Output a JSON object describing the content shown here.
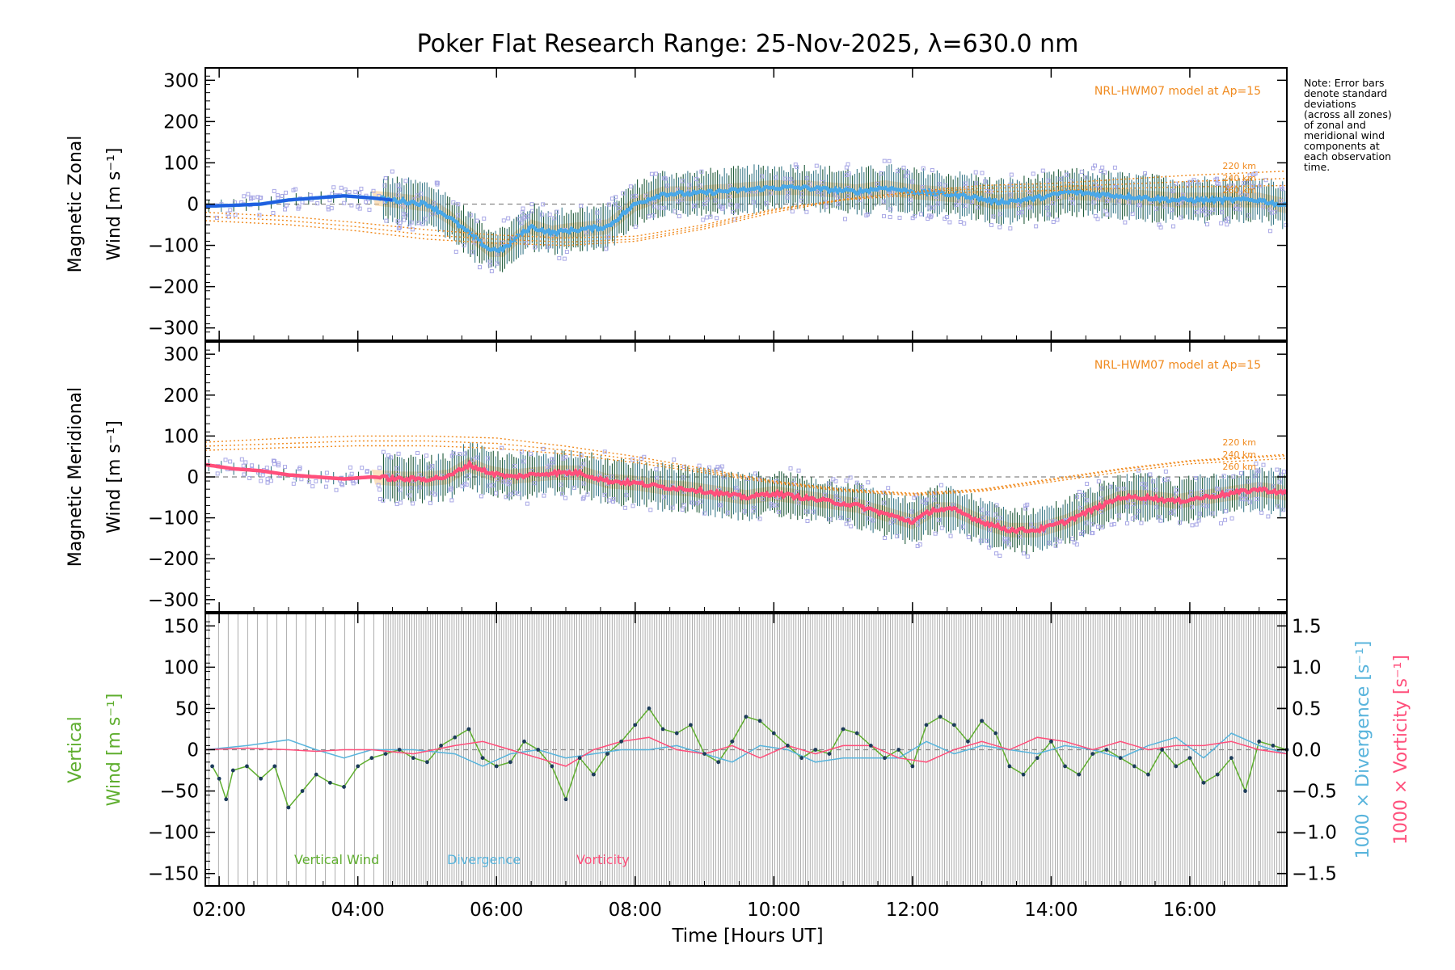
{
  "title": "Poker Flat Research Range: 25-Nov-2025, λ=630.0 nm",
  "note_lines": [
    "Note: Error bars",
    "denote standard",
    "deviations",
    "(across all zones)",
    "of zonal and",
    "meridional wind",
    "components at",
    "each observation",
    "time."
  ],
  "x_axis": {
    "label": "Time [Hours UT]",
    "range_hours": [
      1.8,
      17.4
    ],
    "ticks": [
      {
        "h": 2,
        "label": "02:00"
      },
      {
        "h": 4,
        "label": "04:00"
      },
      {
        "h": 6,
        "label": "06:00"
      },
      {
        "h": 8,
        "label": "08:00"
      },
      {
        "h": 10,
        "label": "10:00"
      },
      {
        "h": 12,
        "label": "12:00"
      },
      {
        "h": 14,
        "label": "14:00"
      },
      {
        "h": 16,
        "label": "16:00"
      }
    ]
  },
  "colors": {
    "zonal_mean": "#1f5fe0",
    "zonal_mean_late": "#4aa8e8",
    "meridional_mean": "#ff4f7b",
    "vertical": "#5fae2f",
    "divergence": "#58b4dc",
    "vorticity": "#ff4f7b",
    "model": "#f08a1e",
    "scatter": "#a9a8e6",
    "errorbar": "#1f5a3a",
    "points": "#1c3b5a",
    "band": "#f7c98a",
    "zero_line": "#888888",
    "grid": "#777777"
  },
  "chart_data": [
    {
      "type": "line",
      "panel": "zonal",
      "ylabel_line1": "Magnetic Zonal",
      "ylabel_line2": "Wind [m s⁻¹]",
      "ylim": [
        -330,
        330
      ],
      "yticks": [
        -300,
        -200,
        -100,
        0,
        100,
        200,
        300
      ],
      "model_label": "NRL-HWM07 model at Ap=15",
      "model_altitude_labels": [
        "220 km",
        "240 km",
        "260 km"
      ],
      "series": [
        {
          "name": "Mean zonal wind",
          "x": [
            1.8,
            2.2,
            2.6,
            3.0,
            3.4,
            3.8,
            4.2,
            4.6,
            5.0,
            5.3,
            5.6,
            5.9,
            6.1,
            6.3,
            6.5,
            6.8,
            7.0,
            7.3,
            7.6,
            8.0,
            8.4,
            8.8,
            9.2,
            9.6,
            10.0,
            10.4,
            10.8,
            11.2,
            11.6,
            12.0,
            12.4,
            12.8,
            13.2,
            13.6,
            14.0,
            14.2,
            14.6,
            15.0,
            15.4,
            15.8,
            16.2,
            16.6,
            17.0,
            17.4
          ],
          "y": [
            -5,
            -3,
            0,
            10,
            15,
            20,
            15,
            8,
            0,
            -30,
            -70,
            -110,
            -110,
            -80,
            -55,
            -70,
            -65,
            -60,
            -55,
            0,
            25,
            25,
            30,
            35,
            40,
            40,
            35,
            30,
            40,
            30,
            25,
            20,
            5,
            10,
            20,
            30,
            25,
            20,
            15,
            10,
            10,
            10,
            10,
            -5
          ]
        },
        {
          "name": "HWM07 220 km",
          "x": [
            1.8,
            3.0,
            4.0,
            5.0,
            6.0,
            7.0,
            8.0,
            9.0,
            10.0,
            11.0,
            12.0,
            13.0,
            14.0,
            15.0,
            16.0,
            17.4
          ],
          "y": [
            -40,
            -50,
            -65,
            -85,
            -95,
            -100,
            -90,
            -60,
            -20,
            10,
            30,
            45,
            50,
            60,
            70,
            80
          ]
        },
        {
          "name": "HWM07 240 km",
          "x": [
            1.8,
            3.0,
            4.0,
            5.0,
            6.0,
            7.0,
            8.0,
            9.0,
            10.0,
            11.0,
            12.0,
            13.0,
            14.0,
            15.0,
            16.0,
            17.4
          ],
          "y": [
            -30,
            -40,
            -55,
            -75,
            -85,
            -92,
            -85,
            -55,
            -15,
            12,
            28,
            38,
            42,
            48,
            55,
            62
          ]
        },
        {
          "name": "HWM07 260 km",
          "x": [
            1.8,
            3.0,
            4.0,
            5.0,
            6.0,
            7.0,
            8.0,
            9.0,
            10.0,
            11.0,
            12.0,
            13.0,
            14.0,
            15.0,
            16.0,
            17.4
          ],
          "y": [
            -20,
            -30,
            -45,
            -62,
            -75,
            -82,
            -78,
            -50,
            -12,
            10,
            22,
            30,
            33,
            38,
            42,
            45
          ]
        }
      ]
    },
    {
      "type": "line",
      "panel": "meridional",
      "ylabel_line1": "Magnetic Meridional",
      "ylabel_line2": "Wind [m s⁻¹]",
      "ylim": [
        -330,
        330
      ],
      "yticks": [
        -300,
        -200,
        -100,
        0,
        100,
        200,
        300
      ],
      "model_label": "NRL-HWM07 model at Ap=15",
      "model_altitude_labels": [
        "220 km",
        "240 km",
        "260 km"
      ],
      "series": [
        {
          "name": "Mean meridional wind",
          "x": [
            1.8,
            2.2,
            2.6,
            3.0,
            3.4,
            3.8,
            4.2,
            4.6,
            5.0,
            5.3,
            5.6,
            5.9,
            6.2,
            6.5,
            6.8,
            7.2,
            7.6,
            8.0,
            8.4,
            8.8,
            9.2,
            9.6,
            10.0,
            10.4,
            10.8,
            11.2,
            11.6,
            12.0,
            12.3,
            12.6,
            13.0,
            13.4,
            13.8,
            14.2,
            14.6,
            15.0,
            15.4,
            15.8,
            16.2,
            16.6,
            17.0,
            17.4
          ],
          "y": [
            30,
            20,
            15,
            5,
            0,
            -5,
            0,
            -5,
            -5,
            0,
            30,
            10,
            0,
            5,
            10,
            10,
            -10,
            -15,
            -25,
            -30,
            -40,
            -50,
            -40,
            -50,
            -60,
            -70,
            -90,
            -110,
            -80,
            -80,
            -110,
            -130,
            -130,
            -110,
            -80,
            -50,
            -50,
            -60,
            -50,
            -40,
            -30,
            -40
          ]
        },
        {
          "name": "HWM07 220 km",
          "x": [
            1.8,
            3.0,
            4.0,
            5.0,
            6.0,
            7.0,
            8.0,
            9.0,
            10.0,
            11.0,
            12.0,
            13.0,
            14.0,
            15.0,
            16.0,
            17.4
          ],
          "y": [
            85,
            95,
            100,
            100,
            95,
            75,
            50,
            20,
            -10,
            -30,
            -40,
            -30,
            -5,
            20,
            40,
            55
          ]
        },
        {
          "name": "HWM07 240 km",
          "x": [
            1.8,
            3.0,
            4.0,
            5.0,
            6.0,
            7.0,
            8.0,
            9.0,
            10.0,
            11.0,
            12.0,
            13.0,
            14.0,
            15.0,
            16.0,
            17.4
          ],
          "y": [
            75,
            82,
            88,
            88,
            82,
            65,
            42,
            15,
            -12,
            -32,
            -42,
            -32,
            -8,
            18,
            38,
            52
          ]
        },
        {
          "name": "HWM07 260 km",
          "x": [
            1.8,
            3.0,
            4.0,
            5.0,
            6.0,
            7.0,
            8.0,
            9.0,
            10.0,
            11.0,
            12.0,
            13.0,
            14.0,
            15.0,
            16.0,
            17.4
          ],
          "y": [
            65,
            72,
            76,
            76,
            70,
            56,
            35,
            10,
            -15,
            -35,
            -45,
            -35,
            -12,
            12,
            32,
            45
          ]
        }
      ]
    },
    {
      "type": "line",
      "panel": "vertical",
      "ylabel_line1": "Vertical",
      "ylabel_line2": "Wind [m s⁻¹]",
      "ylim": [
        -165,
        165
      ],
      "yticks": [
        -150,
        -100,
        -50,
        0,
        50,
        100,
        150
      ],
      "y2label_1": "1000 × Divergence [s⁻¹]",
      "y2label_2": "1000 × Vorticity [s⁻¹]",
      "y2lim": [
        -1.65,
        1.65
      ],
      "y2ticks": [
        {
          "v": 1.5,
          "label": "1.5"
        },
        {
          "v": 1.0,
          "label": "1.0"
        },
        {
          "v": 0.5,
          "label": "0.5"
        },
        {
          "v": 0.0,
          "label": "0.0"
        },
        {
          "v": -0.5,
          "label": "−0.5"
        },
        {
          "v": -1.0,
          "label": "−1.0"
        },
        {
          "v": -1.5,
          "label": "−1.5"
        }
      ],
      "legend": [
        "Vertical Wind",
        "Divergence",
        "Vorticity"
      ],
      "series": [
        {
          "name": "Vertical Wind",
          "x": [
            1.9,
            2.0,
            2.1,
            2.2,
            2.4,
            2.6,
            2.8,
            3.0,
            3.2,
            3.4,
            3.6,
            3.8,
            4.0,
            4.2,
            4.4,
            4.6,
            4.8,
            5.0,
            5.2,
            5.4,
            5.6,
            5.8,
            6.0,
            6.2,
            6.4,
            6.6,
            6.8,
            7.0,
            7.2,
            7.4,
            7.6,
            7.8,
            8.0,
            8.2,
            8.4,
            8.6,
            8.8,
            9.0,
            9.2,
            9.4,
            9.6,
            9.8,
            10.0,
            10.2,
            10.4,
            10.6,
            10.8,
            11.0,
            11.2,
            11.4,
            11.6,
            11.8,
            12.0,
            12.2,
            12.4,
            12.6,
            12.8,
            13.0,
            13.2,
            13.4,
            13.6,
            13.8,
            14.0,
            14.2,
            14.4,
            14.6,
            14.8,
            15.0,
            15.2,
            15.4,
            15.6,
            15.8,
            16.0,
            16.2,
            16.4,
            16.6,
            16.8,
            17.0,
            17.2,
            17.4
          ],
          "y": [
            -20,
            -35,
            -60,
            -25,
            -20,
            -35,
            -20,
            -70,
            -50,
            -30,
            -40,
            -45,
            -20,
            -10,
            -5,
            0,
            -10,
            -15,
            5,
            15,
            25,
            -10,
            -20,
            -15,
            10,
            0,
            -20,
            -60,
            -10,
            -30,
            -5,
            10,
            30,
            50,
            25,
            20,
            30,
            -5,
            -15,
            10,
            40,
            35,
            20,
            5,
            -10,
            0,
            -5,
            25,
            20,
            5,
            -10,
            0,
            -20,
            30,
            40,
            30,
            10,
            35,
            20,
            -20,
            -30,
            -10,
            10,
            -20,
            -30,
            -5,
            0,
            -10,
            -20,
            -30,
            0,
            -20,
            -10,
            -40,
            -30,
            -10,
            -50,
            10,
            5,
            0
          ]
        },
        {
          "name": "Divergence",
          "x": [
            1.8,
            2.4,
            3.0,
            3.4,
            3.8,
            4.2,
            4.8,
            5.4,
            5.8,
            6.2,
            6.6,
            7.0,
            7.4,
            7.8,
            8.2,
            8.6,
            9.0,
            9.4,
            9.8,
            10.2,
            10.6,
            11.0,
            11.4,
            11.8,
            12.2,
            12.6,
            13.0,
            13.4,
            13.8,
            14.2,
            14.6,
            15.0,
            15.4,
            15.8,
            16.2,
            16.6,
            17.0,
            17.4
          ],
          "y": [
            0.0,
            0.05,
            0.12,
            0.0,
            -0.1,
            0.0,
            0.0,
            -0.05,
            -0.2,
            -0.05,
            0.0,
            -0.1,
            -0.05,
            0.0,
            0.0,
            0.05,
            -0.05,
            -0.15,
            0.05,
            0.0,
            -0.15,
            -0.1,
            -0.1,
            -0.1,
            0.1,
            -0.05,
            0.05,
            0.0,
            -0.05,
            0.05,
            0.0,
            -0.1,
            0.05,
            0.15,
            -0.1,
            0.2,
            0.05,
            -0.05
          ]
        },
        {
          "name": "Vorticity",
          "x": [
            1.8,
            2.4,
            3.0,
            3.4,
            3.8,
            4.2,
            4.8,
            5.4,
            5.8,
            6.2,
            6.6,
            7.0,
            7.4,
            7.8,
            8.2,
            8.6,
            9.0,
            9.4,
            9.8,
            10.2,
            10.6,
            11.0,
            11.4,
            11.8,
            12.2,
            12.6,
            13.0,
            13.4,
            13.8,
            14.2,
            14.6,
            15.0,
            15.4,
            15.8,
            16.2,
            16.6,
            17.0,
            17.4
          ],
          "y": [
            0.0,
            0.02,
            0.0,
            -0.02,
            0.0,
            0.0,
            -0.05,
            0.05,
            0.1,
            0.0,
            -0.1,
            -0.2,
            0.0,
            0.1,
            0.15,
            0.0,
            -0.05,
            0.05,
            -0.1,
            0.05,
            -0.05,
            0.05,
            0.05,
            -0.1,
            -0.15,
            0.0,
            0.1,
            0.0,
            0.15,
            0.1,
            0.0,
            0.1,
            0.0,
            0.05,
            0.05,
            0.1,
            0.0,
            -0.05
          ]
        }
      ]
    }
  ]
}
